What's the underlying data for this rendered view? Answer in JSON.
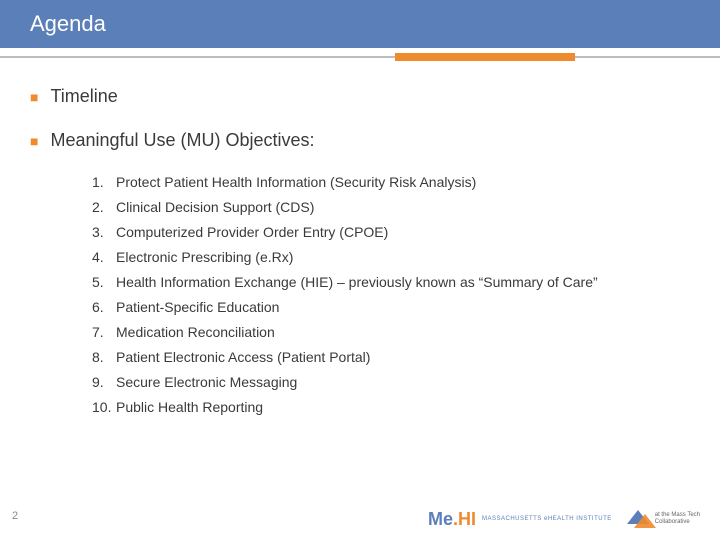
{
  "header": {
    "title": "Agenda"
  },
  "colors": {
    "header_bg": "#5b7fb8",
    "accent_orange": "#ee8b2f",
    "line_grey": "#bdbdbd",
    "text": "#3a3a3a",
    "bg": "#ffffff"
  },
  "bullets": [
    {
      "text": "Timeline"
    },
    {
      "text": "Meaningful Use (MU) Objectives:"
    }
  ],
  "numbered": [
    {
      "n": "1.",
      "text": "Protect Patient Health Information (Security Risk Analysis)"
    },
    {
      "n": "2.",
      "text": "Clinical Decision Support (CDS)"
    },
    {
      "n": "3.",
      "text": "Computerized Provider Order Entry (CPOE)"
    },
    {
      "n": "4.",
      "text": "Electronic Prescribing (e.Rx)"
    },
    {
      "n": "5.",
      "text": "Health Information Exchange (HIE) – previously known as “Summary of Care”"
    },
    {
      "n": "6.",
      "text": "Patient-Specific Education"
    },
    {
      "n": "7.",
      "text": "Medication Reconciliation"
    },
    {
      "n": "8.",
      "text": "Patient Electronic Access (Patient Portal)"
    },
    {
      "n": "9.",
      "text": "Secure Electronic Messaging"
    },
    {
      "n": "10.",
      "text": "Public Health Reporting"
    }
  ],
  "page_number": "2",
  "logos": {
    "mehi": {
      "me": "Me",
      "dot": ".",
      "hi": "HI",
      "sub": "MASSACHUSETTS\neHEALTH INSTITUTE"
    },
    "mtc": {
      "line1": "at the Mass Tech",
      "line2": "Collaborative"
    }
  }
}
